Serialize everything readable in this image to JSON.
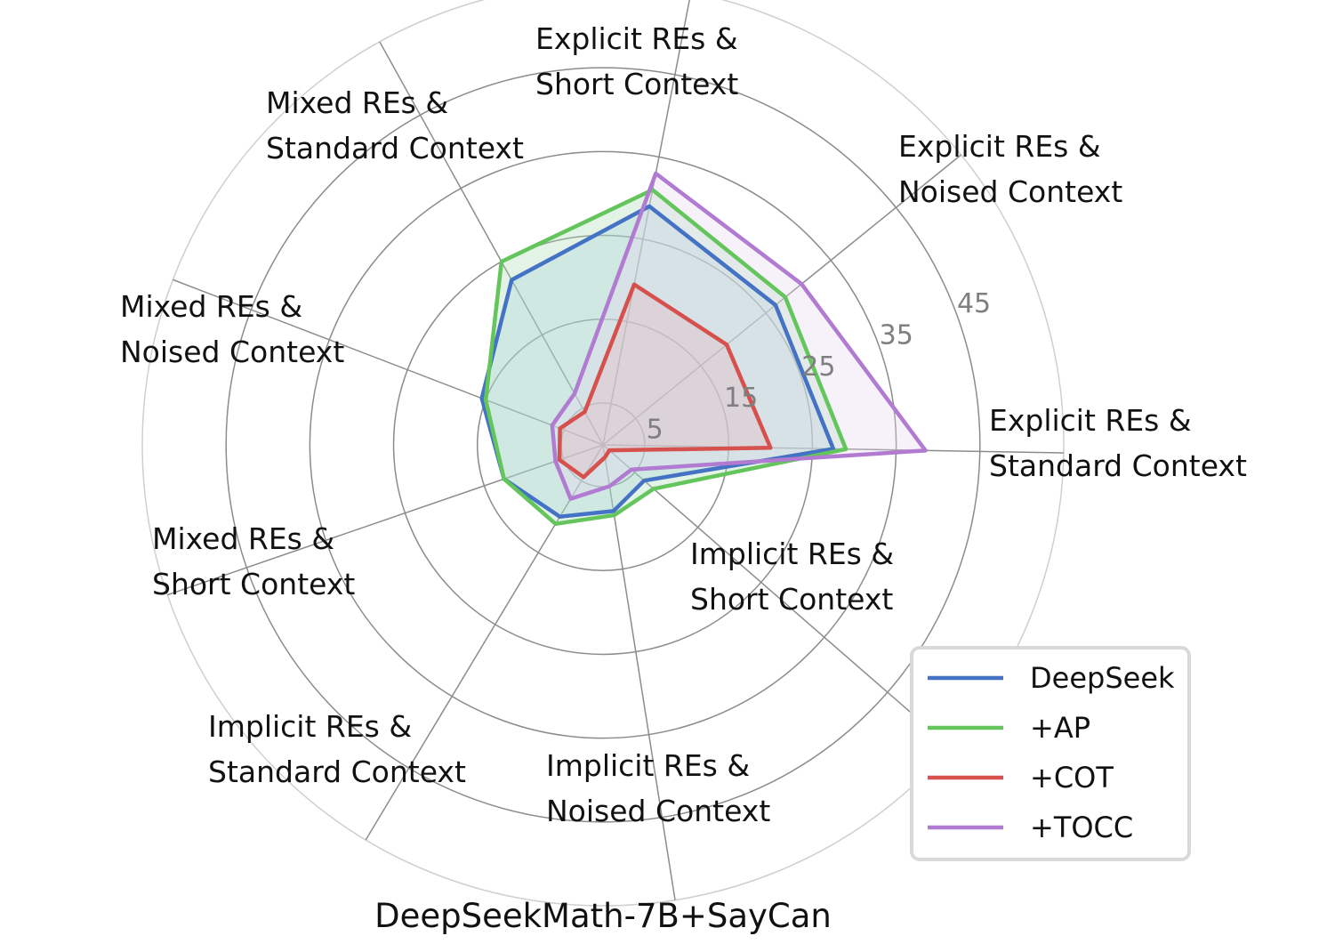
{
  "chart_data": {
    "type": "radar",
    "title": "DeepSeekMath-7B+SayCan",
    "categories": [
      [
        "Explicit REs &",
        "Standard Context"
      ],
      [
        "Explicit REs &",
        "Noised Context"
      ],
      [
        "Explicit REs &",
        "Short Context"
      ],
      [
        "Mixed REs &",
        "Standard Context"
      ],
      [
        "Mixed REs &",
        "Noised Context"
      ],
      [
        "Mixed REs &",
        "Short Context"
      ],
      [
        "Implicit REs &",
        "Standard Context"
      ],
      [
        "Implicit REs &",
        "Noised Context"
      ],
      [
        "Implicit REs &",
        "Short Context"
      ]
    ],
    "radial_ticks": [
      5,
      15,
      25,
      35,
      45
    ],
    "radial_tick_labels": [
      "5",
      "15",
      "25",
      "35",
      "45"
    ],
    "rlim": [
      0,
      55
    ],
    "grid": true,
    "legend_position": "bottom-right",
    "series": [
      {
        "name": "DeepSeek",
        "color": "#4472c4",
        "fill": "#a9c8e8",
        "values": [
          27.5,
          26.5,
          29.0,
          22.5,
          15.5,
          12.5,
          10.0,
          8.0,
          6.5
        ]
      },
      {
        "name": "+AP",
        "color": "#63c55c",
        "fill": "#a7ddb4",
        "values": [
          29.0,
          28.0,
          31.0,
          25.0,
          15.0,
          12.5,
          11.0,
          8.5,
          8.0
        ]
      },
      {
        "name": "+COT",
        "color": "#d6504d",
        "fill": "#e7a3a4",
        "values": [
          20.0,
          19.0,
          19.5,
          4.5,
          5.5,
          5.5,
          4.5,
          1.5,
          1.0
        ]
      },
      {
        "name": "+TOCC",
        "color": "#b07bd0",
        "fill": "#e6d8f0",
        "values": [
          38.5,
          30.5,
          33.0,
          7.0,
          6.5,
          6.0,
          7.5,
          5.0,
          4.5
        ]
      }
    ]
  }
}
